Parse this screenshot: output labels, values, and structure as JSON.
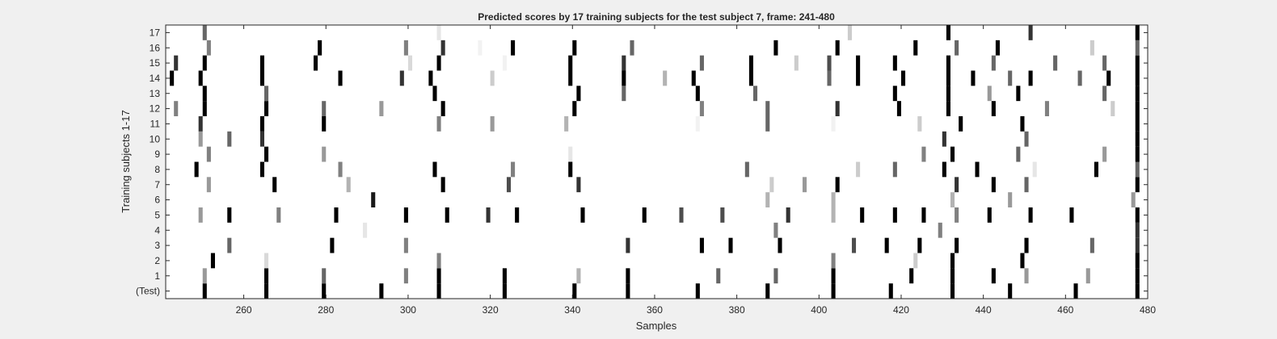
{
  "chart_data": {
    "type": "heatmap",
    "title": "Predicted scores by 17 training subjects for the test subject 7, frame: 241-480",
    "xlabel": "Samples",
    "ylabel": "Training subjects 1-17",
    "xlim": [
      241,
      480
    ],
    "x_ticks": [
      260,
      280,
      300,
      320,
      340,
      360,
      380,
      400,
      420,
      440,
      460,
      480
    ],
    "y_tick_labels": [
      "(Test)",
      "1",
      "2",
      "3",
      "4",
      "5",
      "6",
      "7",
      "8",
      "9",
      "10",
      "11",
      "12",
      "13",
      "14",
      "15",
      "16",
      "17"
    ],
    "value_range": [
      0,
      1
    ],
    "colormap": "white-to-black",
    "rows": [
      {
        "label": "(Test)",
        "cells": [
          [
            250,
            1
          ],
          [
            265,
            1
          ],
          [
            279,
            1
          ],
          [
            293,
            1
          ],
          [
            307,
            1
          ],
          [
            323,
            1
          ],
          [
            340,
            1
          ],
          [
            353,
            1
          ],
          [
            370,
            1
          ],
          [
            387,
            1
          ],
          [
            403,
            1
          ],
          [
            417,
            1
          ],
          [
            432,
            1
          ],
          [
            446,
            1
          ],
          [
            462,
            1
          ],
          [
            477,
            1
          ]
        ]
      },
      {
        "label": "1",
        "cells": [
          [
            250,
            0.4
          ],
          [
            265,
            1
          ],
          [
            279,
            0.6
          ],
          [
            299,
            0.5
          ],
          [
            307,
            1
          ],
          [
            323,
            1
          ],
          [
            341,
            0.3
          ],
          [
            353,
            1
          ],
          [
            375,
            0.6
          ],
          [
            389,
            0.6
          ],
          [
            403,
            1
          ],
          [
            422,
            1
          ],
          [
            432,
            1
          ],
          [
            442,
            1
          ],
          [
            450,
            0.4
          ],
          [
            465,
            0.4
          ],
          [
            477,
            1
          ]
        ]
      },
      {
        "label": "2",
        "cells": [
          [
            252,
            1
          ],
          [
            265,
            0.15
          ],
          [
            307,
            0.5
          ],
          [
            403,
            0.5
          ],
          [
            423,
            0.2
          ],
          [
            432,
            1
          ],
          [
            449,
            1
          ],
          [
            477,
            1
          ]
        ]
      },
      {
        "label": "3",
        "cells": [
          [
            256,
            0.6
          ],
          [
            281,
            1
          ],
          [
            299,
            0.5
          ],
          [
            353,
            0.8
          ],
          [
            371,
            1
          ],
          [
            378,
            1
          ],
          [
            390,
            1
          ],
          [
            408,
            0.7
          ],
          [
            416,
            1
          ],
          [
            424,
            1
          ],
          [
            433,
            1
          ],
          [
            450,
            1
          ],
          [
            466,
            0.6
          ],
          [
            477,
            0.8
          ]
        ]
      },
      {
        "label": "4",
        "cells": [
          [
            289,
            0.1
          ],
          [
            389,
            0.5
          ],
          [
            429,
            0.5
          ],
          [
            477,
            0.8
          ]
        ]
      },
      {
        "label": "5",
        "cells": [
          [
            249,
            0.4
          ],
          [
            256,
            1
          ],
          [
            268,
            0.5
          ],
          [
            282,
            1
          ],
          [
            299,
            1
          ],
          [
            309,
            1
          ],
          [
            319,
            0.8
          ],
          [
            326,
            1
          ],
          [
            342,
            1
          ],
          [
            357,
            1
          ],
          [
            366,
            0.7
          ],
          [
            376,
            0.7
          ],
          [
            392,
            0.8
          ],
          [
            403,
            0.3
          ],
          [
            410,
            1
          ],
          [
            418,
            1
          ],
          [
            425,
            1
          ],
          [
            433,
            0.5
          ],
          [
            441,
            1
          ],
          [
            451,
            1
          ],
          [
            461,
            1
          ],
          [
            477,
            1
          ]
        ]
      },
      {
        "label": "6",
        "cells": [
          [
            291,
            0.9
          ],
          [
            387,
            0.3
          ],
          [
            403,
            0.3
          ],
          [
            432,
            0.3
          ],
          [
            446,
            0.4
          ],
          [
            476,
            0.4
          ]
        ]
      },
      {
        "label": "7",
        "cells": [
          [
            251,
            0.4
          ],
          [
            267,
            1
          ],
          [
            285,
            0.3
          ],
          [
            308,
            1
          ],
          [
            324,
            0.7
          ],
          [
            341,
            0.8
          ],
          [
            388,
            0.2
          ],
          [
            396,
            0.4
          ],
          [
            404,
            1
          ],
          [
            433,
            0.8
          ],
          [
            442,
            1
          ],
          [
            450,
            0.6
          ],
          [
            477,
            1
          ]
        ]
      },
      {
        "label": "8",
        "cells": [
          [
            248,
            1
          ],
          [
            264,
            1
          ],
          [
            283,
            0.5
          ],
          [
            306,
            1
          ],
          [
            325,
            0.5
          ],
          [
            339,
            1
          ],
          [
            382,
            0.6
          ],
          [
            409,
            0.2
          ],
          [
            418,
            0.6
          ],
          [
            430,
            1
          ],
          [
            438,
            1
          ],
          [
            452,
            0.1
          ],
          [
            467,
            1
          ],
          [
            477,
            0.6
          ]
        ]
      },
      {
        "label": "9",
        "cells": [
          [
            251,
            0.5
          ],
          [
            265,
            1
          ],
          [
            279,
            0.4
          ],
          [
            339,
            0.1
          ],
          [
            425,
            0.5
          ],
          [
            432,
            1
          ],
          [
            448,
            0.6
          ],
          [
            469,
            0.4
          ],
          [
            477,
            1
          ]
        ]
      },
      {
        "label": "10",
        "cells": [
          [
            249,
            0.4
          ],
          [
            256,
            0.6
          ],
          [
            264,
            0.8
          ],
          [
            430,
            0.8
          ],
          [
            450,
            0.6
          ],
          [
            477,
            1
          ]
        ]
      },
      {
        "label": "11",
        "cells": [
          [
            249,
            0.8
          ],
          [
            264,
            1
          ],
          [
            279,
            1
          ],
          [
            307,
            0.5
          ],
          [
            320,
            0.4
          ],
          [
            338,
            0.3
          ],
          [
            370,
            0.05
          ],
          [
            387,
            0.6
          ],
          [
            403,
            0.05
          ],
          [
            424,
            0.2
          ],
          [
            434,
            1
          ],
          [
            449,
            1
          ],
          [
            477,
            1
          ]
        ]
      },
      {
        "label": "12",
        "cells": [
          [
            243,
            0.5
          ],
          [
            250,
            1
          ],
          [
            265,
            1
          ],
          [
            279,
            0.6
          ],
          [
            293,
            0.4
          ],
          [
            308,
            1
          ],
          [
            340,
            1
          ],
          [
            371,
            0.5
          ],
          [
            387,
            0.6
          ],
          [
            404,
            0.8
          ],
          [
            419,
            1
          ],
          [
            431,
            1
          ],
          [
            442,
            1
          ],
          [
            455,
            0.5
          ],
          [
            471,
            0.2
          ],
          [
            477,
            1
          ]
        ]
      },
      {
        "label": "13",
        "cells": [
          [
            250,
            1
          ],
          [
            265,
            0.6
          ],
          [
            306,
            1
          ],
          [
            341,
            1
          ],
          [
            352,
            0.6
          ],
          [
            370,
            1
          ],
          [
            384,
            0.6
          ],
          [
            418,
            1
          ],
          [
            431,
            1
          ],
          [
            441,
            0.4
          ],
          [
            448,
            1
          ],
          [
            469,
            0.6
          ],
          [
            477,
            1
          ]
        ]
      },
      {
        "label": "14",
        "cells": [
          [
            242,
            1
          ],
          [
            249,
            1
          ],
          [
            264,
            1
          ],
          [
            283,
            1
          ],
          [
            298,
            0.8
          ],
          [
            305,
            1
          ],
          [
            320,
            0.2
          ],
          [
            339,
            1
          ],
          [
            352,
            1
          ],
          [
            362,
            0.3
          ],
          [
            369,
            1
          ],
          [
            383,
            1
          ],
          [
            402,
            0.6
          ],
          [
            409,
            1
          ],
          [
            420,
            1
          ],
          [
            431,
            1
          ],
          [
            437,
            1
          ],
          [
            446,
            0.6
          ],
          [
            451,
            1
          ],
          [
            463,
            0.6
          ],
          [
            470,
            1
          ],
          [
            477,
            1
          ]
        ]
      },
      {
        "label": "15",
        "cells": [
          [
            243,
            0.8
          ],
          [
            250,
            1
          ],
          [
            264,
            1
          ],
          [
            277,
            1
          ],
          [
            300,
            0.15
          ],
          [
            307,
            1
          ],
          [
            323,
            0.05
          ],
          [
            339,
            1
          ],
          [
            352,
            0.8
          ],
          [
            371,
            0.6
          ],
          [
            383,
            1
          ],
          [
            394,
            0.2
          ],
          [
            402,
            0.7
          ],
          [
            409,
            1
          ],
          [
            418,
            1
          ],
          [
            431,
            1
          ],
          [
            442,
            0.6
          ],
          [
            457,
            0.6
          ],
          [
            469,
            0.6
          ],
          [
            477,
            1
          ]
        ]
      },
      {
        "label": "16",
        "cells": [
          [
            251,
            0.5
          ],
          [
            278,
            1
          ],
          [
            299,
            0.5
          ],
          [
            308,
            0.8
          ],
          [
            317,
            0.05
          ],
          [
            325,
            1
          ],
          [
            340,
            1
          ],
          [
            354,
            0.6
          ],
          [
            389,
            1
          ],
          [
            404,
            1
          ],
          [
            423,
            1
          ],
          [
            433,
            0.6
          ],
          [
            443,
            1
          ],
          [
            466,
            0.2
          ],
          [
            477,
            0.6
          ]
        ]
      },
      {
        "label": "17",
        "cells": [
          [
            250,
            0.6
          ],
          [
            307,
            0.1
          ],
          [
            407,
            0.2
          ],
          [
            431,
            1
          ],
          [
            451,
            0.8
          ],
          [
            477,
            1
          ]
        ]
      }
    ]
  }
}
